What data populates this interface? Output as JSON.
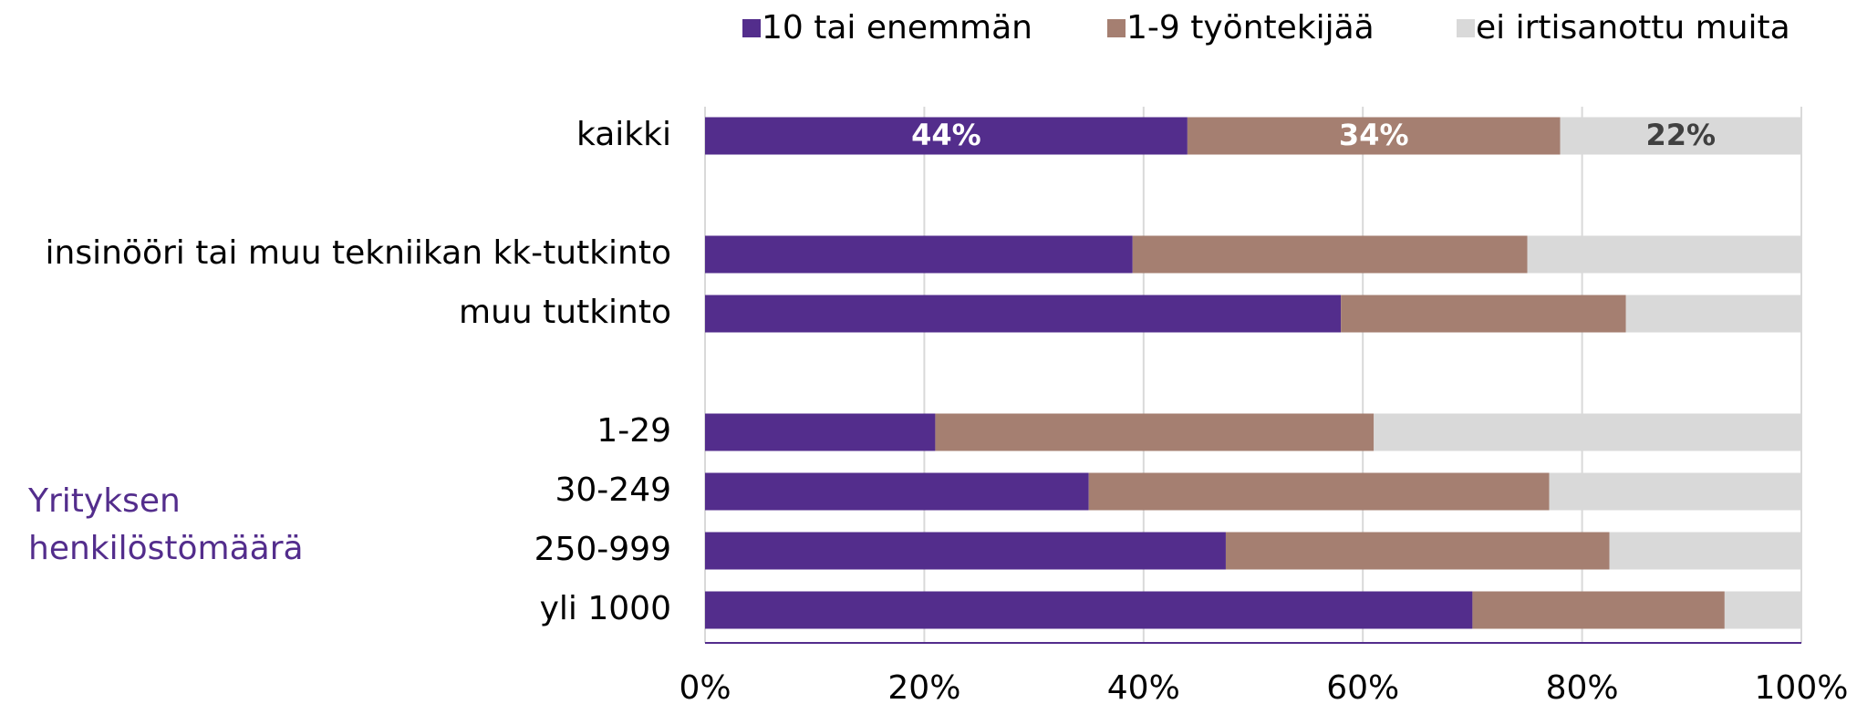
{
  "chart_data": {
    "type": "stacked_barh",
    "categories": [
      "kaikki",
      null,
      "insinööri tai muu tekniikan kk-tutkinto",
      "muu tutkinto",
      null,
      "1-29",
      "30-249",
      "250-999",
      "yli 1000"
    ],
    "series": [
      {
        "name": "10 tai enemmän",
        "color": "#532d8c",
        "label_color": "#ffffff",
        "values": [
          44,
          null,
          39,
          58,
          null,
          21,
          35,
          47.5,
          70
        ],
        "value_labels": [
          "44%",
          null,
          null,
          null,
          null,
          null,
          null,
          null,
          null
        ]
      },
      {
        "name": "1-9 työntekijää",
        "color": "#a57f71",
        "label_color": "#ffffff",
        "values": [
          34,
          null,
          36,
          26,
          null,
          40,
          42,
          35,
          23
        ],
        "value_labels": [
          "34%",
          null,
          null,
          null,
          null,
          null,
          null,
          null,
          null
        ]
      },
      {
        "name": "ei irtisanottu muita",
        "color": "#d9d9d9",
        "label_color": "#404040",
        "values": [
          22,
          null,
          25,
          16,
          null,
          39,
          23,
          17.5,
          7
        ],
        "value_labels": [
          "22%",
          null,
          null,
          null,
          null,
          null,
          null,
          null,
          null
        ]
      }
    ],
    "annotation": [
      "Yrityksen",
      "henkilöstömäärä"
    ],
    "xlim": [
      0,
      100
    ],
    "xticks": [
      {
        "value": 0,
        "label": "0%"
      },
      {
        "value": 20,
        "label": "20%"
      },
      {
        "value": 40,
        "label": "40%"
      },
      {
        "value": 60,
        "label": "60%"
      },
      {
        "value": 80,
        "label": "80%"
      },
      {
        "value": 100,
        "label": "100%"
      }
    ],
    "grid": true,
    "legend": "top"
  }
}
